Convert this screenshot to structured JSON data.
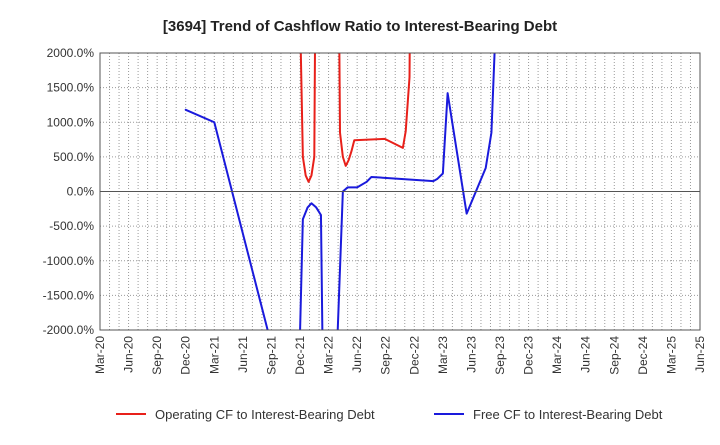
{
  "chart_data": {
    "type": "line",
    "title": "[3694]  Trend of Cashflow Ratio to Interest-Bearing Debt",
    "xlabel": "",
    "ylabel": "",
    "ylim": [
      -2000,
      2000
    ],
    "y_ticks": [
      2000,
      1500,
      1000,
      500,
      0,
      -500,
      -1000,
      -1500,
      -2000
    ],
    "y_tick_labels": [
      "2000.0%",
      "1500.0%",
      "1000.0%",
      "500.0%",
      "0.0%",
      "-500.0%",
      "-1000.0%",
      "-1500.0%",
      "-2000.0%"
    ],
    "x_ticks": [
      "Mar-20",
      "Jun-20",
      "Sep-20",
      "Dec-20",
      "Mar-21",
      "Jun-21",
      "Sep-21",
      "Dec-21",
      "Mar-22",
      "Jun-22",
      "Sep-22",
      "Dec-22",
      "Mar-23",
      "Jun-23",
      "Sep-23",
      "Dec-23",
      "Mar-24",
      "Jun-24",
      "Sep-24",
      "Dec-24",
      "Mar-25",
      "Jun-25"
    ],
    "grid": true,
    "legend_position": "bottom",
    "series": [
      {
        "name": "Operating CF to Interest-Bearing Debt",
        "color": "#e8201a",
        "points": [
          [
            21.0,
            2600
          ],
          [
            21.3,
            500
          ],
          [
            21.6,
            230
          ],
          [
            21.9,
            140
          ],
          [
            22.2,
            230
          ],
          [
            22.5,
            500
          ],
          [
            22.6,
            2600
          ],
          null,
          [
            25.1,
            2600
          ],
          [
            25.2,
            850
          ],
          [
            25.5,
            500
          ],
          [
            25.8,
            370
          ],
          [
            26.1,
            450
          ],
          [
            26.4,
            580
          ],
          [
            26.7,
            740
          ],
          [
            29.9,
            760
          ],
          [
            31.8,
            630
          ],
          [
            32.1,
            870
          ],
          [
            32.5,
            1650
          ],
          [
            32.55,
            2600
          ]
        ]
      },
      {
        "name": "Free CF to Interest-Bearing Debt",
        "color": "#1a1adc",
        "points": [
          [
            9.0,
            1180
          ],
          [
            12.0,
            1000
          ],
          [
            17.6,
            -2000
          ],
          [
            17.8,
            -2600
          ],
          null,
          [
            20.9,
            -2600
          ],
          [
            21.3,
            -400
          ],
          [
            21.8,
            -230
          ],
          [
            22.2,
            -170
          ],
          [
            22.7,
            -230
          ],
          [
            23.2,
            -340
          ],
          [
            23.4,
            -2600
          ],
          null,
          [
            24.8,
            -2600
          ],
          [
            25.5,
            0
          ],
          [
            26.0,
            60
          ],
          [
            27.0,
            60
          ],
          [
            28.0,
            140
          ],
          [
            28.5,
            210
          ],
          [
            35.0,
            150
          ],
          [
            35.4,
            180
          ],
          [
            36.0,
            260
          ],
          [
            36.5,
            1420
          ],
          [
            38.5,
            -320
          ],
          [
            40.5,
            340
          ],
          [
            41.1,
            850
          ],
          [
            41.6,
            2600
          ]
        ]
      }
    ]
  }
}
